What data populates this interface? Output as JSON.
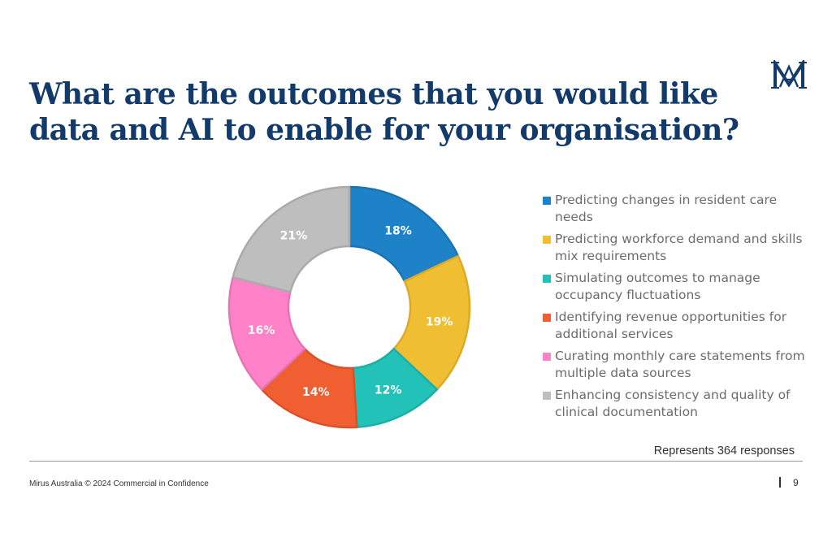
{
  "slide": {
    "title": "What are the outcomes that you would like data and AI to enable for your organisation?",
    "logo": "MA-monogram-logo",
    "note": "Represents 364 responses",
    "footer": "Mirus Australia © 2024  Commercial in Confidence",
    "page_number": "9"
  },
  "chart_data": {
    "type": "pie",
    "donut": true,
    "title": "",
    "start_angle": "12 o'clock, clockwise",
    "legend_position": "right",
    "categories": [
      "Predicting changes in resident care needs",
      "Predicting workforce demand and skills mix requirements",
      "Simulating outcomes to manage occupancy fluctuations",
      "Identifying revenue opportunities for additional services",
      "Curating monthly care statements from multiple data sources",
      "Enhancing consistency and quality of clinical documentation"
    ],
    "values": [
      18,
      19,
      12,
      14,
      16,
      21
    ],
    "labels": [
      "18%",
      "19%",
      "12%",
      "14%",
      "16%",
      "21%"
    ],
    "colors": [
      "#1e82c8",
      "#f0be32",
      "#22c2b8",
      "#f05f32",
      "#ff82c8",
      "#bebebe"
    ],
    "edge_colors": [
      "#1a74b4",
      "#dcaa28",
      "#1eaea4",
      "#dc5028",
      "#e673b4",
      "#aaaaaa"
    ]
  }
}
